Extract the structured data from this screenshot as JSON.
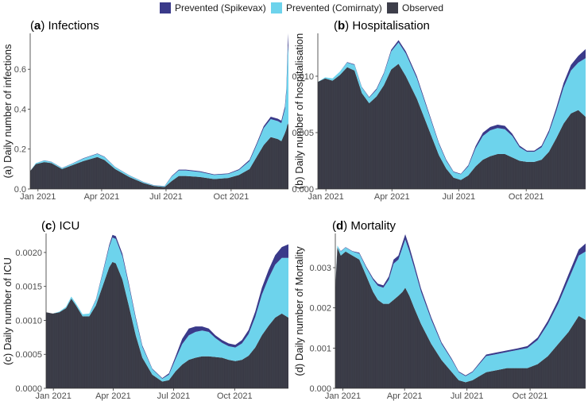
{
  "legend": {
    "items": [
      {
        "label": "Prevented (Spikevax)",
        "color": "#3a3a8a"
      },
      {
        "label": "Prevented (Comirnaty)",
        "color": "#6dd3ec"
      },
      {
        "label": "Observed",
        "color": "#3d3e4a"
      }
    ]
  },
  "chart_data": [
    {
      "type": "area",
      "letter": "a",
      "title": "Infections",
      "ylabel": "(a) Daily number of infections",
      "xlim": [
        0,
        365
      ],
      "ylim": [
        0,
        0.78
      ],
      "x_ticks": [
        {
          "pos": 11,
          "label": "Jan 2021"
        },
        {
          "pos": 101,
          "label": "Apr 2021"
        },
        {
          "pos": 192,
          "label": "Jul 2021"
        },
        {
          "pos": 284,
          "label": "Oct 2021"
        }
      ],
      "y_ticks": [
        {
          "pos": 0.0,
          "label": "0.0"
        },
        {
          "pos": 0.2,
          "label": "0.2"
        },
        {
          "pos": 0.4,
          "label": "0.4"
        },
        {
          "pos": 0.6,
          "label": "0.6"
        }
      ],
      "x": [
        0,
        8,
        20,
        30,
        45,
        60,
        75,
        95,
        105,
        120,
        140,
        160,
        175,
        190,
        200,
        210,
        220,
        240,
        260,
        280,
        295,
        310,
        320,
        330,
        340,
        350,
        355,
        360,
        362,
        364,
        365
      ],
      "series": [
        {
          "name": "Observed",
          "values": [
            0.09,
            0.125,
            0.135,
            0.13,
            0.1,
            0.12,
            0.14,
            0.16,
            0.145,
            0.1,
            0.06,
            0.03,
            0.015,
            0.01,
            0.04,
            0.065,
            0.065,
            0.06,
            0.05,
            0.055,
            0.07,
            0.1,
            0.16,
            0.22,
            0.26,
            0.25,
            0.24,
            0.28,
            0.3,
            0.33,
            0.32
          ]
        },
        {
          "name": "Prevented (Comirnaty)",
          "values": [
            0.0,
            0.005,
            0.008,
            0.006,
            0.005,
            0.008,
            0.012,
            0.016,
            0.015,
            0.01,
            0.008,
            0.005,
            0.003,
            0.004,
            0.022,
            0.028,
            0.028,
            0.025,
            0.02,
            0.02,
            0.025,
            0.04,
            0.06,
            0.085,
            0.09,
            0.09,
            0.09,
            0.12,
            0.18,
            0.35,
            0.4
          ]
        },
        {
          "name": "Prevented (Spikevax)",
          "values": [
            0.0,
            0.0,
            0.001,
            0.001,
            0.001,
            0.001,
            0.002,
            0.002,
            0.002,
            0.001,
            0.001,
            0.001,
            0.001,
            0.001,
            0.003,
            0.004,
            0.004,
            0.004,
            0.003,
            0.003,
            0.004,
            0.006,
            0.008,
            0.01,
            0.012,
            0.012,
            0.012,
            0.015,
            0.02,
            0.04,
            0.06
          ]
        }
      ]
    },
    {
      "type": "area",
      "letter": "b",
      "title": "Hospitalisation",
      "ylabel": "(b) Daily number of hospitalisation",
      "xlim": [
        0,
        365
      ],
      "ylim": [
        0,
        0.0138
      ],
      "x_ticks": [
        {
          "pos": 11,
          "label": "Jan 2021"
        },
        {
          "pos": 101,
          "label": "Apr 2021"
        },
        {
          "pos": 192,
          "label": "Jul 2021"
        },
        {
          "pos": 284,
          "label": "Oct 2021"
        }
      ],
      "y_ticks": [
        {
          "pos": 0.0,
          "label": "0.000"
        },
        {
          "pos": 0.005,
          "label": "0.005"
        },
        {
          "pos": 0.01,
          "label": "0.010"
        }
      ],
      "x": [
        0,
        10,
        20,
        30,
        40,
        50,
        60,
        70,
        80,
        90,
        100,
        110,
        120,
        135,
        150,
        165,
        175,
        185,
        195,
        205,
        215,
        225,
        235,
        245,
        255,
        265,
        275,
        285,
        295,
        305,
        315,
        325,
        335,
        345,
        355,
        365
      ],
      "series": [
        {
          "name": "Observed",
          "values": [
            0.0095,
            0.0098,
            0.0096,
            0.0101,
            0.0108,
            0.0105,
            0.0085,
            0.0076,
            0.0082,
            0.0092,
            0.0106,
            0.0111,
            0.01,
            0.008,
            0.0055,
            0.003,
            0.0018,
            0.001,
            0.0008,
            0.0012,
            0.002,
            0.0026,
            0.0029,
            0.0031,
            0.0031,
            0.0028,
            0.0025,
            0.0024,
            0.0024,
            0.0026,
            0.0033,
            0.0045,
            0.0058,
            0.0067,
            0.007,
            0.0064
          ]
        },
        {
          "name": "Prevented (Comirnaty)",
          "values": [
            0.0,
            0.0001,
            0.0002,
            0.0003,
            0.0004,
            0.0005,
            0.0005,
            0.0005,
            0.0006,
            0.001,
            0.0016,
            0.0019,
            0.002,
            0.0018,
            0.0014,
            0.001,
            0.0007,
            0.0005,
            0.0005,
            0.0008,
            0.0016,
            0.0021,
            0.0023,
            0.0023,
            0.0022,
            0.0019,
            0.0012,
            0.0009,
            0.0009,
            0.0011,
            0.0017,
            0.0024,
            0.0032,
            0.0038,
            0.0042,
            0.0052
          ]
        },
        {
          "name": "Prevented (Spikevax)",
          "values": [
            0.0,
            0.0,
            0.0,
            0.0,
            5e-05,
            5e-05,
            5e-05,
            5e-05,
            0.0001,
            0.0001,
            0.00015,
            0.0002,
            0.0002,
            0.0002,
            0.00015,
            0.0001,
            0.0001,
            5e-05,
            5e-05,
            0.0001,
            0.0002,
            0.0003,
            0.0003,
            0.0003,
            0.0003,
            0.0002,
            0.00015,
            0.0001,
            0.0001,
            0.00015,
            0.0002,
            0.0003,
            0.0004,
            0.0005,
            0.0006,
            0.0008
          ]
        }
      ]
    },
    {
      "type": "area",
      "letter": "c",
      "title": "ICU",
      "ylabel": "(c) Daily number of ICU",
      "xlim": [
        0,
        365
      ],
      "ylim": [
        0,
        0.00228
      ],
      "x_ticks": [
        {
          "pos": 11,
          "label": "Jan 2021"
        },
        {
          "pos": 101,
          "label": "Apr 2021"
        },
        {
          "pos": 192,
          "label": "Jul 2021"
        },
        {
          "pos": 284,
          "label": "Oct 2021"
        }
      ],
      "y_ticks": [
        {
          "pos": 0.0,
          "label": "0.0000"
        },
        {
          "pos": 0.0005,
          "label": "0.0005"
        },
        {
          "pos": 0.001,
          "label": "0.0010"
        },
        {
          "pos": 0.0015,
          "label": "0.0015"
        },
        {
          "pos": 0.002,
          "label": "0.0020"
        }
      ],
      "x": [
        0,
        10,
        20,
        30,
        38,
        45,
        55,
        65,
        75,
        85,
        95,
        100,
        105,
        115,
        125,
        135,
        145,
        160,
        175,
        185,
        195,
        205,
        215,
        225,
        235,
        245,
        255,
        265,
        275,
        285,
        295,
        305,
        315,
        325,
        335,
        345,
        355,
        365
      ],
      "series": [
        {
          "name": "Observed",
          "values": [
            0.00112,
            0.0011,
            0.00112,
            0.00118,
            0.00132,
            0.00122,
            0.00106,
            0.00106,
            0.00122,
            0.0015,
            0.00178,
            0.00186,
            0.00184,
            0.0016,
            0.0012,
            0.00078,
            0.00045,
            0.0002,
            0.0001,
            0.00012,
            0.00025,
            0.00035,
            0.00042,
            0.00045,
            0.00047,
            0.00047,
            0.00046,
            0.00045,
            0.00042,
            0.0004,
            0.00042,
            0.00048,
            0.0006,
            0.00078,
            0.00092,
            0.00104,
            0.0011,
            0.00104
          ]
        },
        {
          "name": "Prevented (Comirnaty)",
          "values": [
            0.0,
            0.0,
            1e-05,
            2e-05,
            3e-05,
            3e-05,
            3e-05,
            4e-05,
            8e-05,
            0.00018,
            0.0003,
            0.00036,
            0.00036,
            0.00034,
            0.0003,
            0.00024,
            0.00016,
            8e-05,
            4e-05,
            8e-05,
            0.00018,
            0.0003,
            0.00036,
            0.00038,
            0.00038,
            0.00036,
            0.00028,
            0.00022,
            0.0002,
            0.0002,
            0.00024,
            0.00032,
            0.00045,
            0.0006,
            0.0007,
            0.00078,
            0.00082,
            0.00088
          ]
        },
        {
          "name": "Prevented (Spikevax)",
          "values": [
            0.0,
            0.0,
            0.0,
            0.0,
            0.0,
            0.0,
            0.0,
            0.0,
            1e-05,
            2e-05,
            3e-05,
            4e-05,
            4e-05,
            4e-05,
            3e-05,
            3e-05,
            2e-05,
            1e-05,
            1e-05,
            2e-05,
            4e-05,
            8e-05,
            0.0001,
            8e-05,
            6e-05,
            5e-05,
            4e-05,
            4e-05,
            4e-05,
            4e-05,
            5e-05,
            6e-05,
            8e-05,
            0.0001,
            0.00012,
            0.00014,
            0.00016,
            0.0002
          ]
        }
      ]
    },
    {
      "type": "area",
      "letter": "d",
      "title": "Mortality",
      "ylabel": "(d) Daily number of Mortality",
      "xlim": [
        0,
        365
      ],
      "ylim": [
        0,
        0.00385
      ],
      "x_ticks": [
        {
          "pos": 11,
          "label": "Jan 2021"
        },
        {
          "pos": 101,
          "label": "Apr 2021"
        },
        {
          "pos": 192,
          "label": "Jul 2021"
        },
        {
          "pos": 284,
          "label": "Oct 2021"
        }
      ],
      "y_ticks": [
        {
          "pos": 0.0,
          "label": "0.000"
        },
        {
          "pos": 0.001,
          "label": "0.001"
        },
        {
          "pos": 0.002,
          "label": "0.002"
        },
        {
          "pos": 0.003,
          "label": "0.003"
        }
      ],
      "x": [
        0,
        3,
        8,
        15,
        25,
        35,
        45,
        55,
        62,
        70,
        78,
        85,
        92,
        98,
        102,
        108,
        115,
        125,
        140,
        155,
        170,
        180,
        190,
        200,
        210,
        220,
        235,
        250,
        265,
        280,
        295,
        310,
        325,
        340,
        355,
        365
      ],
      "series": [
        {
          "name": "Observed",
          "values": [
            0.0025,
            0.0035,
            0.0033,
            0.0034,
            0.0033,
            0.0032,
            0.0028,
            0.0024,
            0.0022,
            0.0021,
            0.0021,
            0.0022,
            0.0023,
            0.0024,
            0.0025,
            0.0023,
            0.002,
            0.0016,
            0.0011,
            0.0007,
            0.0004,
            0.0002,
            0.00015,
            0.0002,
            0.0003,
            0.0004,
            0.00045,
            0.0005,
            0.0005,
            0.0005,
            0.0006,
            0.0008,
            0.0011,
            0.0014,
            0.0018,
            0.0017
          ]
        },
        {
          "name": "Prevented (Comirnaty)",
          "values": [
            0.0,
            5e-05,
            0.0001,
            0.0001,
            0.0001,
            0.00015,
            0.0002,
            0.0003,
            0.00035,
            0.0004,
            0.0006,
            0.0009,
            0.0009,
            0.0011,
            0.0012,
            0.0011,
            0.001,
            0.0008,
            0.0006,
            0.0004,
            0.0003,
            0.0002,
            0.00015,
            0.0002,
            0.0003,
            0.0004,
            0.0004,
            0.0004,
            0.00045,
            0.0005,
            0.0006,
            0.0008,
            0.001,
            0.0013,
            0.0015,
            0.0017
          ]
        },
        {
          "name": "Prevented (Spikevax)",
          "values": [
            0.0,
            0.0,
            1e-05,
            1e-05,
            1e-05,
            2e-05,
            3e-05,
            4e-05,
            5e-05,
            6e-05,
            8e-05,
            0.0001,
            0.0001,
            0.00012,
            0.00013,
            0.00012,
            0.0001,
            8e-05,
            6e-05,
            4e-05,
            3e-05,
            2e-05,
            2e-05,
            2e-05,
            3e-05,
            4e-05,
            4e-05,
            4e-05,
            4e-05,
            5e-05,
            6e-05,
            8e-05,
            0.0001,
            0.00013,
            0.00015,
            0.0002
          ]
        }
      ]
    }
  ]
}
